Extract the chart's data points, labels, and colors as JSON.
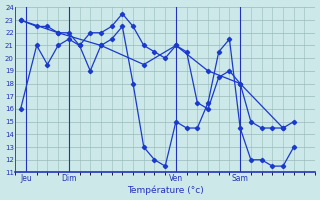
{
  "xlabel": "Température (°c)",
  "bg_color": "#cce8e8",
  "line_color": "#1a3acc",
  "grid_color": "#99bbbb",
  "axis_color": "#2233bb",
  "ylim": [
    11,
    24
  ],
  "yticks": [
    11,
    12,
    13,
    14,
    15,
    16,
    17,
    18,
    19,
    20,
    21,
    22,
    23,
    24
  ],
  "xlim": [
    0,
    28
  ],
  "day_labels": [
    "Jeu",
    "Dim",
    "Ven",
    "Sam"
  ],
  "day_positions": [
    1,
    5,
    15,
    21
  ],
  "minor_grid_x_count": 28,
  "series1_x": [
    0.5,
    2,
    3,
    4,
    5,
    6,
    7,
    8,
    9,
    10,
    11,
    12,
    13,
    14,
    15,
    16,
    17,
    18,
    19,
    20,
    21,
    22,
    23,
    24,
    25,
    26
  ],
  "series1_y": [
    16,
    21,
    19.5,
    21,
    21.5,
    21,
    19,
    21,
    21.5,
    22.5,
    18,
    13,
    12,
    11.5,
    15,
    14.5,
    14.5,
    16.5,
    20.5,
    21.5,
    14.5,
    12,
    12,
    11.5,
    11.5,
    13
  ],
  "series2_x": [
    0.5,
    2,
    3,
    4,
    5,
    6,
    7,
    8,
    9,
    10,
    11,
    12,
    13,
    14,
    15,
    16,
    17,
    18,
    19,
    20,
    21,
    22,
    23,
    24,
    25,
    26
  ],
  "series2_y": [
    23,
    22.5,
    22.5,
    22,
    22,
    21,
    22,
    22,
    22.5,
    23.5,
    22.5,
    21,
    20.5,
    20,
    21,
    20.5,
    16.5,
    16,
    18.5,
    19,
    18,
    15,
    14.5,
    14.5,
    14.5,
    15
  ],
  "series3_x": [
    0.5,
    4,
    8,
    12,
    15,
    18,
    21,
    25
  ],
  "series3_y": [
    23,
    22,
    21,
    19.5,
    21,
    19,
    18,
    14.5
  ]
}
